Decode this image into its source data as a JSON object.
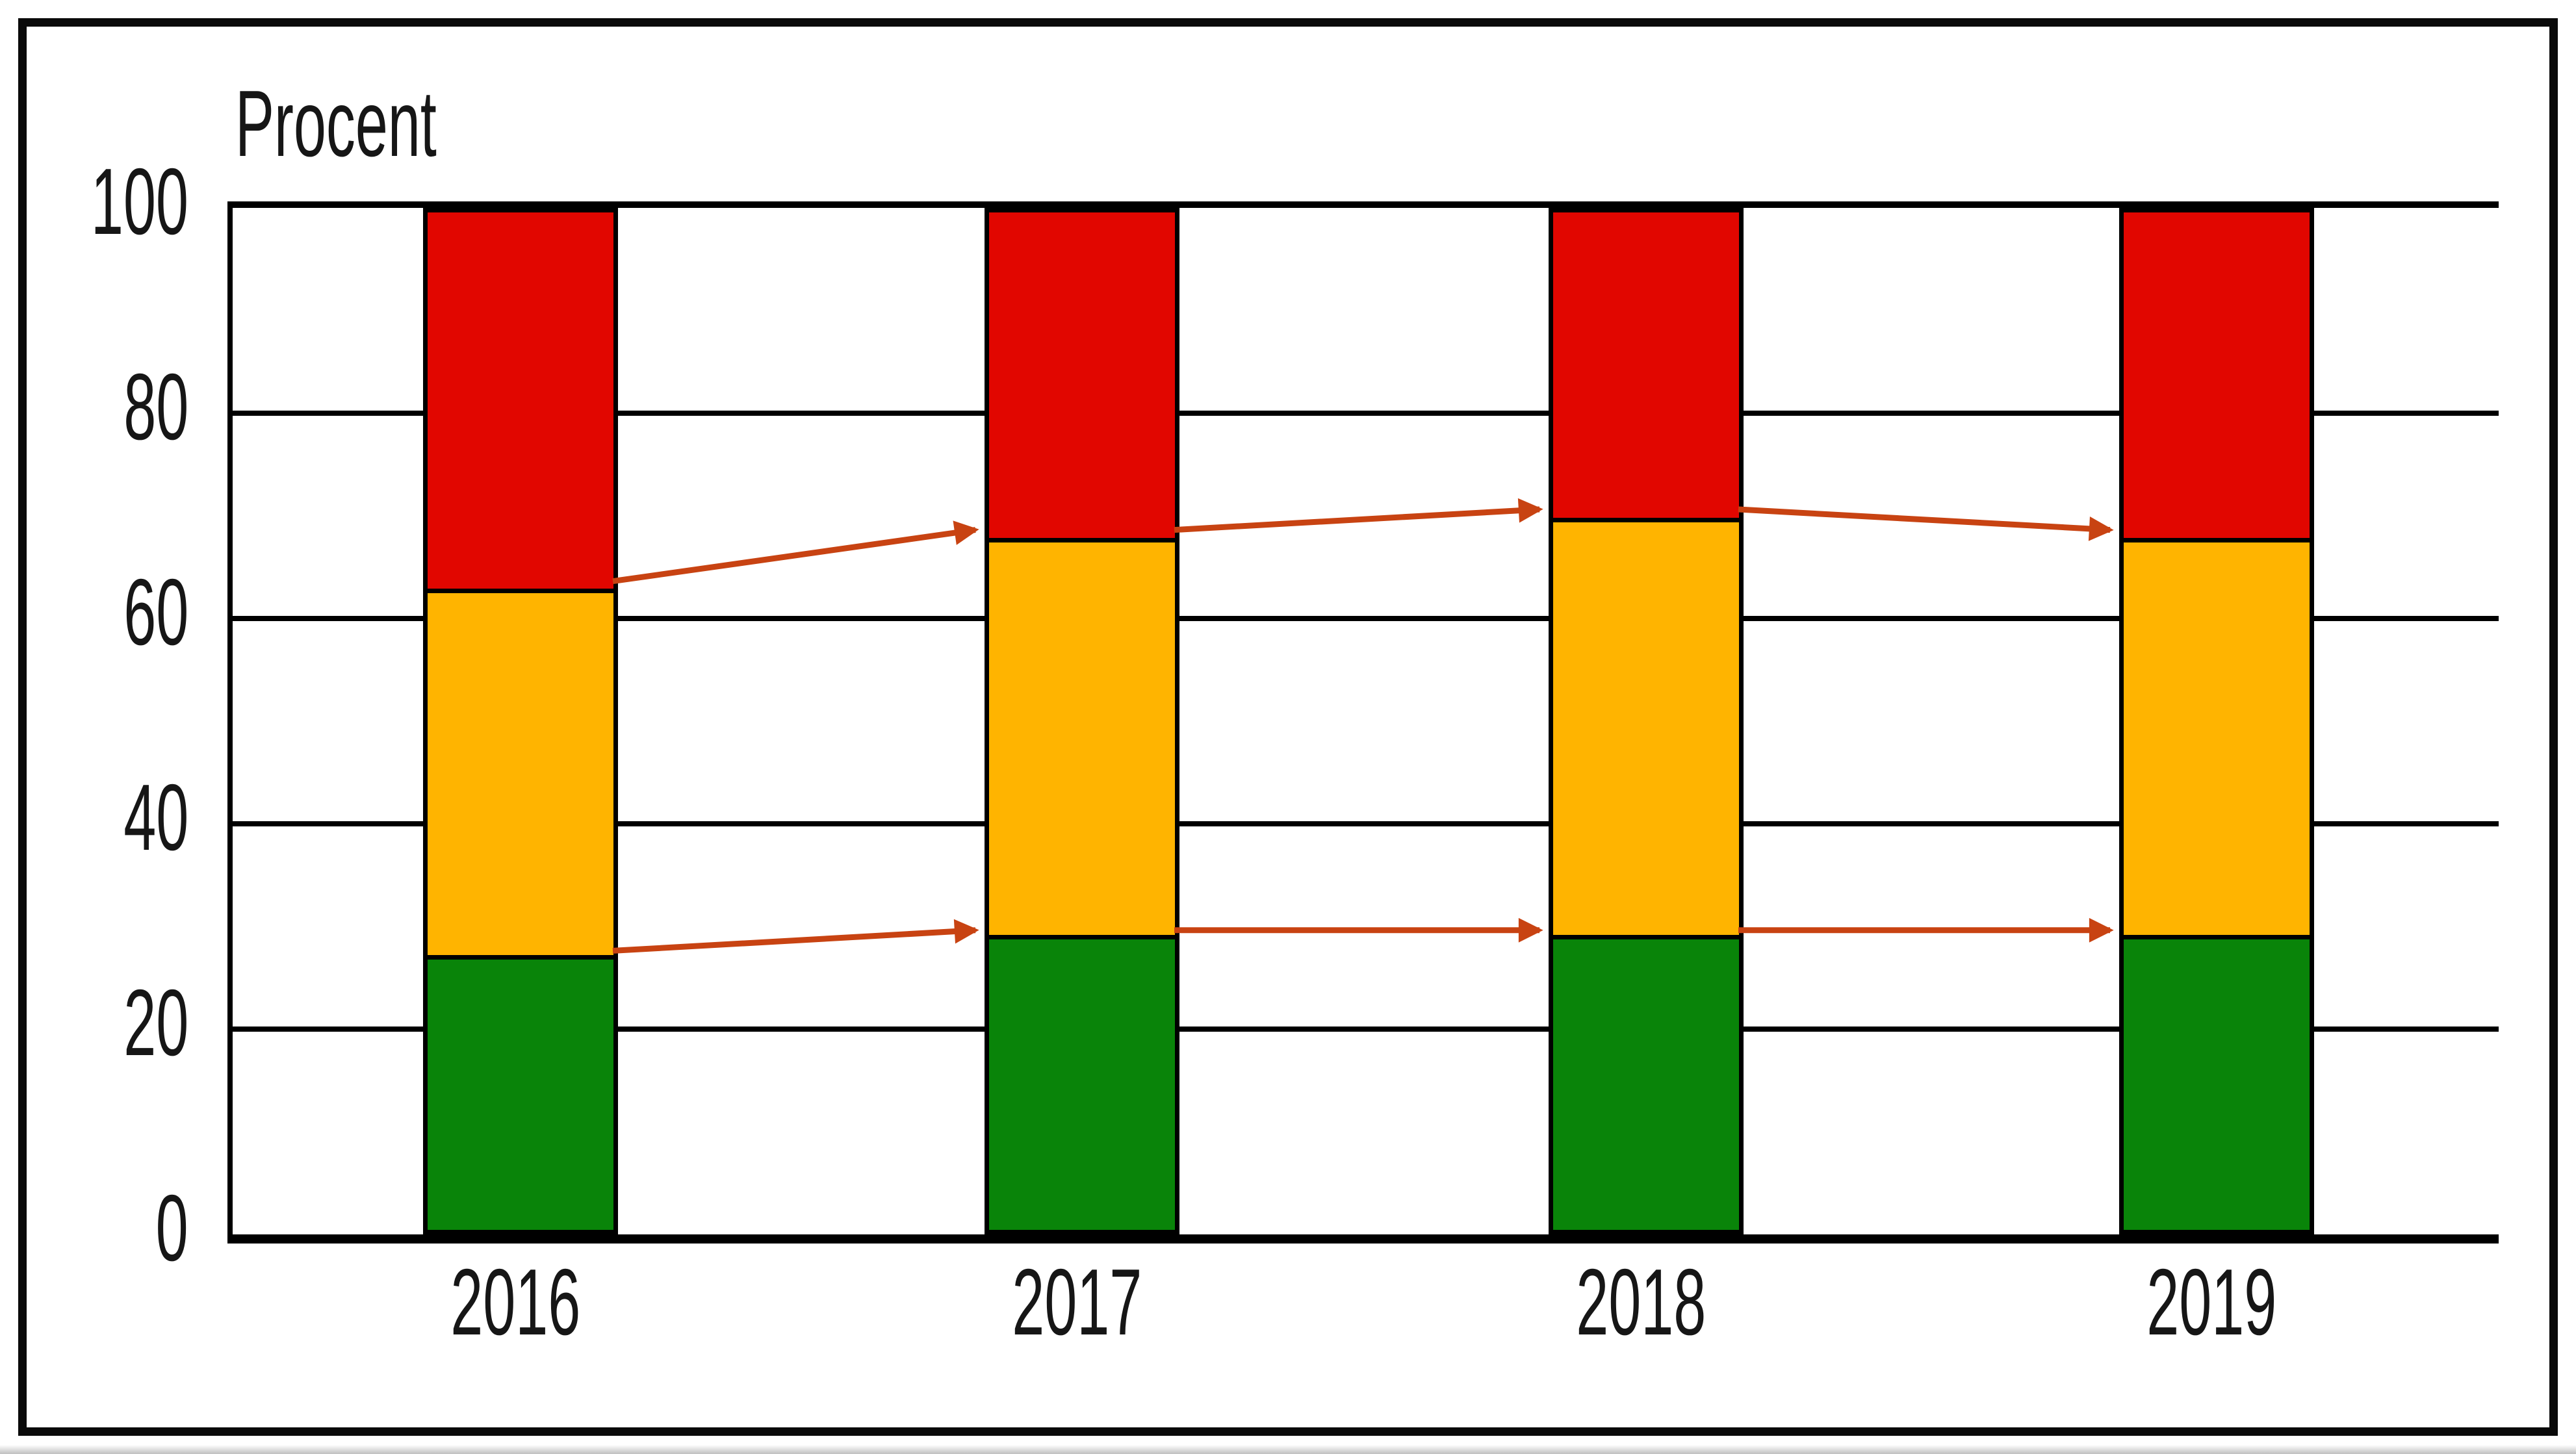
{
  "title": "Procent",
  "chart_data": {
    "type": "bar",
    "stacked": true,
    "title": "Procent",
    "ylabel": "Procent",
    "xlabel": "",
    "categories": [
      "2016",
      "2017",
      "2018",
      "2019"
    ],
    "series": [
      {
        "name": "green-bottom",
        "color": "#098409",
        "values": [
          27,
          29,
          29,
          29
        ]
      },
      {
        "name": "orange-middle",
        "color": "#ffb400",
        "values": [
          36,
          39,
          41,
          39
        ]
      },
      {
        "name": "red-top",
        "color": "#e10600",
        "values": [
          37,
          32,
          30,
          32
        ]
      }
    ],
    "segment_boundaries": {
      "green_top": [
        27,
        29,
        29,
        29
      ],
      "orange_top": [
        63,
        68,
        70,
        68
      ]
    },
    "trend_lines": {
      "description": "arrows between consecutive bars linking segment boundaries",
      "color": "#c84312",
      "upper_series_values": [
        63,
        68,
        70,
        68
      ],
      "lower_series_values": [
        27,
        29,
        29,
        29
      ]
    },
    "ylim": [
      0,
      100
    ],
    "yticks": [
      100,
      80,
      60,
      40,
      20,
      0
    ],
    "ytick_labels": [
      "100",
      "80",
      "60",
      "40",
      "20",
      "0"
    ],
    "grid": "horizontal lines every 20, no right plot border",
    "legend": "none"
  },
  "colors": {
    "red": "#e10600",
    "orange": "#ffb400",
    "green": "#098409",
    "grid": "#000000",
    "text": "#161616",
    "arrow": "#c84312",
    "frame": "#0a0a0a"
  }
}
